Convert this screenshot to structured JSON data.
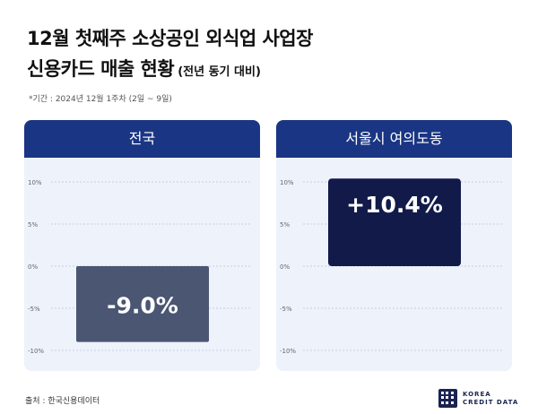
{
  "title_line1": "12월 첫째주 소상공인 외식업 사업장",
  "title_line2": "신용카드 매출 현황",
  "title_sub": "(전년 동기 대비)",
  "period": "*기간 : 2024년 12월 1주차 (2일 ~ 9일)",
  "source": "출처 : 한국신용데이터",
  "logo": {
    "line1": "KOREA",
    "line2": "CREDIT DATA"
  },
  "colors": {
    "header": "#1a3583",
    "bar_negative": "#4a5672",
    "bar_positive": "#121a4a",
    "panel_bg": "#eef2fb"
  },
  "chart_data": [
    {
      "type": "bar",
      "title": "전국",
      "categories": [
        "전국"
      ],
      "values": [
        -9.0
      ],
      "data_labels": [
        "-9.0%"
      ],
      "ylim": [
        -10,
        10
      ],
      "yticks": [
        10,
        5,
        0,
        -5,
        -10
      ],
      "ytick_labels": [
        "10%",
        "5%",
        "0%",
        "-5%",
        "-10%"
      ],
      "grid": true,
      "color": "#4a5672"
    },
    {
      "type": "bar",
      "title": "서울시 여의도동",
      "categories": [
        "서울시 여의도동"
      ],
      "values": [
        10.4
      ],
      "data_labels": [
        "+10.4%"
      ],
      "ylim": [
        -10,
        10
      ],
      "yticks": [
        10,
        5,
        0,
        -5,
        -10
      ],
      "ytick_labels": [
        "10%",
        "5%",
        "0%",
        "-5%",
        "-10%"
      ],
      "grid": true,
      "color": "#121a4a"
    }
  ]
}
